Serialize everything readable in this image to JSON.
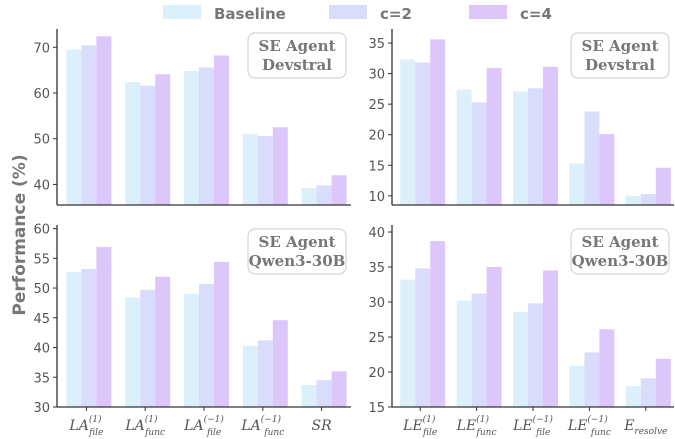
{
  "ylabel": "Performance (%)",
  "colors": {
    "Baseline": "#dcf0fb",
    "c=2": "#dadcfb",
    "c=4": "#dcc6fa",
    "axis": "#333333",
    "text": "#666666"
  },
  "legend": [
    "Baseline",
    "c=2",
    "c=4"
  ],
  "chart_data": [
    {
      "type": "bar",
      "title": "SE Agent\nDevstral",
      "categories": [
        "LA_file^(1)",
        "LA_func^(1)",
        "LA_file^(-1)",
        "LA_func^(-1)",
        "SR"
      ],
      "series": [
        {
          "name": "Baseline",
          "values": [
            69.5,
            62.4,
            64.8,
            51.0,
            39.2
          ]
        },
        {
          "name": "c=2",
          "values": [
            70.4,
            61.6,
            65.6,
            50.6,
            39.8
          ]
        },
        {
          "name": "c=4",
          "values": [
            72.4,
            64.1,
            68.2,
            52.5,
            42.0
          ]
        }
      ],
      "ylim": [
        35.5,
        74
      ],
      "yticks": [
        40,
        50,
        60,
        70
      ]
    },
    {
      "type": "bar",
      "title": "SE Agent\nDevstral",
      "categories": [
        "LE_file^(1)",
        "LE_func^(1)",
        "LE_file^(-1)",
        "LE_func^(-1)",
        "E_resolve"
      ],
      "series": [
        {
          "name": "Baseline",
          "values": [
            32.3,
            27.4,
            27.1,
            15.3,
            10.0
          ]
        },
        {
          "name": "c=2",
          "values": [
            31.8,
            25.3,
            27.6,
            23.8,
            10.3
          ]
        },
        {
          "name": "c=4",
          "values": [
            35.6,
            30.9,
            31.1,
            20.1,
            14.6
          ]
        }
      ],
      "ylim": [
        8.5,
        37.3
      ],
      "yticks": [
        10,
        15,
        20,
        25,
        30,
        35
      ]
    },
    {
      "type": "bar",
      "title": "SE Agent\nQwen3-30B",
      "categories": [
        "LA_file^(1)",
        "LA_func^(1)",
        "LA_file^(-1)",
        "LA_func^(-1)",
        "SR"
      ],
      "series": [
        {
          "name": "Baseline",
          "values": [
            52.7,
            48.4,
            49.0,
            40.3,
            33.7
          ]
        },
        {
          "name": "c=2",
          "values": [
            53.2,
            49.7,
            50.7,
            41.2,
            34.5
          ]
        },
        {
          "name": "c=4",
          "values": [
            56.9,
            51.9,
            54.4,
            44.6,
            36.0
          ]
        }
      ],
      "ylim": [
        30,
        60.6
      ],
      "yticks": [
        30,
        35,
        40,
        45,
        50,
        55,
        60
      ]
    },
    {
      "type": "bar",
      "title": "SE Agent\nQwen3-30B",
      "categories": [
        "LE_file^(1)",
        "LE_func^(1)",
        "LE_file^(-1)",
        "LE_func^(-1)",
        "E_resolve"
      ],
      "series": [
        {
          "name": "Baseline",
          "values": [
            33.2,
            30.2,
            28.6,
            20.9,
            18.0
          ]
        },
        {
          "name": "c=2",
          "values": [
            34.8,
            31.2,
            29.8,
            22.8,
            19.1
          ]
        },
        {
          "name": "c=4",
          "values": [
            38.7,
            35.0,
            34.5,
            26.1,
            21.9
          ]
        }
      ],
      "ylim": [
        15,
        41
      ],
      "yticks": [
        15,
        20,
        25,
        30,
        35,
        40
      ]
    }
  ]
}
